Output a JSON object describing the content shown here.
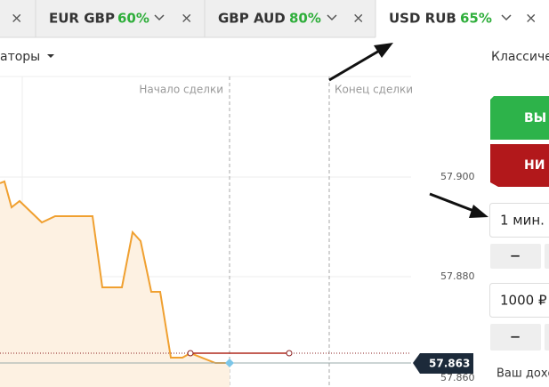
{
  "tabs": [
    {
      "name": "EUR GBP",
      "payout": "60%"
    },
    {
      "name": "GBP AUD",
      "payout": "80%"
    },
    {
      "name": "USD RUB",
      "payout": "65%"
    }
  ],
  "toolbar": {
    "indicators": "аторы",
    "mode": "Классиче"
  },
  "chart": {
    "start_label": "Начало сделки",
    "end_label": "Конец сделки",
    "price_labels": [
      "57.900",
      "57.880",
      "57.860"
    ],
    "current_price": "57.863"
  },
  "panel": {
    "up_button": "ВЫ",
    "down_button": "НИ",
    "duration": "1 мин.",
    "amount": "1000 ₽",
    "income": "Ваш дохо",
    "minus": "−"
  }
}
